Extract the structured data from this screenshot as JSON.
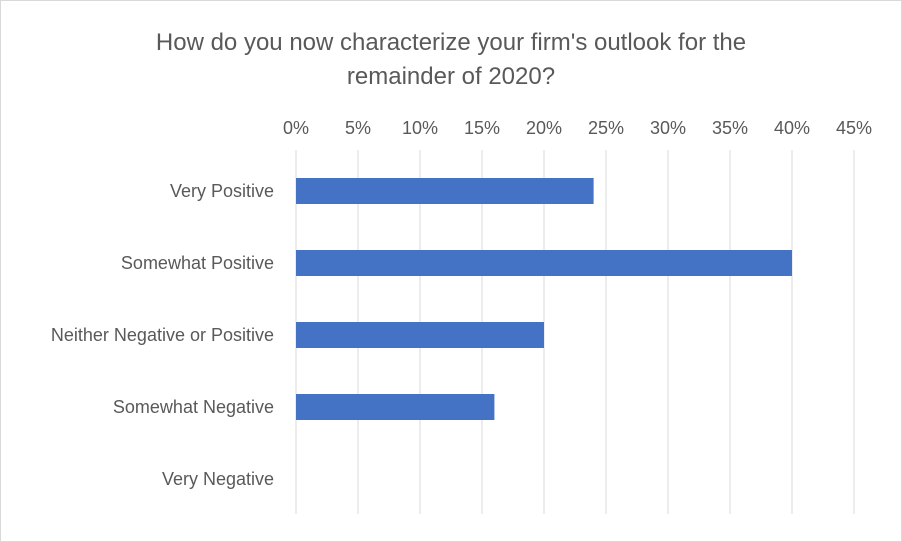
{
  "chart_data": {
    "type": "bar",
    "orientation": "horizontal",
    "title_lines": [
      "How do you now characterize your firm's outlook for the",
      "remainder of 2020?"
    ],
    "categories": [
      "Very Positive",
      "Somewhat Positive",
      "Neither Negative or Positive",
      "Somewhat Negative",
      "Very Negative"
    ],
    "values": [
      24,
      40,
      20,
      16,
      0
    ],
    "value_unit": "percent",
    "xlim": [
      0,
      45
    ],
    "x_ticks": [
      0,
      5,
      10,
      15,
      20,
      25,
      30,
      35,
      40,
      45
    ],
    "x_tick_labels": [
      "0%",
      "5%",
      "10%",
      "15%",
      "20%",
      "25%",
      "30%",
      "35%",
      "40%",
      "45%"
    ],
    "x_axis_position": "top",
    "grid": true,
    "legend": "none",
    "bar_color": "#4472c4",
    "grid_color": "#d9d9d9"
  }
}
